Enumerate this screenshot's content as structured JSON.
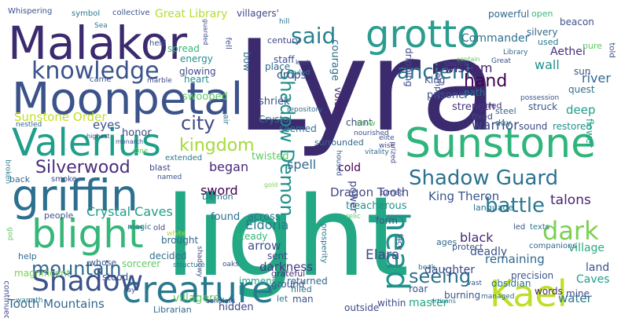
{
  "words": [
    {
      "text": "Lyra",
      "color": "#3b2a6e"
    },
    {
      "text": "light",
      "color": "#22a884"
    },
    {
      "text": "Malakor",
      "color": "#3b2a6e"
    },
    {
      "text": "Moonpetal",
      "color": "#3b528b"
    },
    {
      "text": "Sunstone",
      "color": "#2fb47c"
    },
    {
      "text": "Valerius",
      "color": "#1f9e89"
    },
    {
      "text": "griffin",
      "color": "#2c6f8e"
    },
    {
      "text": "blight",
      "color": "#35b779"
    },
    {
      "text": "grotto",
      "color": "#2a9d8f"
    },
    {
      "text": "creature",
      "color": "#29798e"
    },
    {
      "text": "Kael",
      "color": "#bddf26"
    },
    {
      "text": "knowledge",
      "color": "#3b528b"
    },
    {
      "text": "Shadow Guard",
      "color": "#2c728e"
    },
    {
      "text": "Shadow Demon",
      "color": "#21918c"
    },
    {
      "text": "said",
      "color": "#26828e"
    },
    {
      "text": "ancient",
      "color": "#2c728e"
    },
    {
      "text": "kingdom",
      "color": "#a5db36"
    },
    {
      "text": "city",
      "color": "#3e4a89"
    },
    {
      "text": "hand",
      "color": "#440154"
    },
    {
      "text": "dark",
      "color": "#7ad151"
    },
    {
      "text": "battle",
      "color": "#2a788e"
    },
    {
      "text": "head",
      "color": "#21918c"
    },
    {
      "text": "Shadow",
      "color": "#3b528b"
    },
    {
      "text": "Silverwood",
      "color": "#472d7b"
    },
    {
      "text": "mountain",
      "color": "#31688e"
    },
    {
      "text": "seeing",
      "color": "#2c728e"
    },
    {
      "text": "Sunstone Order",
      "color": "#c2df23"
    },
    {
      "text": "Crystal Caves",
      "color": "#1f9e89"
    },
    {
      "text": "Tooth Mountains",
      "color": "#31688e"
    },
    {
      "text": "Dragon Tooth",
      "color": "#3e4a89"
    },
    {
      "text": "King Theron",
      "color": "#39558c"
    },
    {
      "text": "Great Library",
      "color": "#b5de2b"
    },
    {
      "text": "Commander",
      "color": "#2d708e"
    },
    {
      "text": "Elara",
      "color": "#3e4989"
    },
    {
      "text": "Eldoria",
      "color": "#2a788e"
    },
    {
      "text": "warrior",
      "color": "#3e4989"
    },
    {
      "text": "wisdom",
      "color": "#481f70"
    },
    {
      "text": "arrow",
      "color": "#3b528b"
    },
    {
      "text": "sword",
      "color": "#440154"
    },
    {
      "text": "began",
      "color": "#482878"
    },
    {
      "text": "eyes",
      "color": "#3b528b"
    },
    {
      "text": "darkness",
      "color": "#443983"
    },
    {
      "text": "talons",
      "color": "#482173"
    },
    {
      "text": "river",
      "color": "#31688e"
    },
    {
      "text": "wall",
      "color": "#21918c"
    },
    {
      "text": "deep",
      "color": "#1f9e89"
    },
    {
      "text": "black",
      "color": "#482677"
    },
    {
      "text": "remaining",
      "color": "#31688e"
    },
    {
      "text": "daughter",
      "color": "#3e4989"
    },
    {
      "text": "deadly",
      "color": "#3b528b"
    },
    {
      "text": "village",
      "color": "#28ae80"
    },
    {
      "text": "land",
      "color": "#3b528b"
    },
    {
      "text": "Caves",
      "color": "#1f9e89"
    },
    {
      "text": "water",
      "color": "#2a788e"
    },
    {
      "text": "Aethel",
      "color": "#472d7b"
    },
    {
      "text": "spell",
      "color": "#31688e"
    },
    {
      "text": "cold",
      "color": "#440154"
    },
    {
      "text": "crops",
      "color": "#3e4989"
    },
    {
      "text": "courage",
      "color": "#2d708e"
    },
    {
      "text": "voice",
      "color": "#481f70"
    },
    {
      "text": "chant",
      "color": "#3e4989"
    },
    {
      "text": "strength",
      "color": "#46337e"
    },
    {
      "text": "prisoner",
      "color": "#3b528b"
    },
    {
      "text": "villagers",
      "color": "#5ec962"
    },
    {
      "text": "found",
      "color": "#2c728e"
    },
    {
      "text": "steady",
      "color": "#35b779"
    },
    {
      "text": "brought",
      "color": "#31688e"
    },
    {
      "text": "decided",
      "color": "#2c728e"
    },
    {
      "text": "stood",
      "color": "#3b528b"
    },
    {
      "text": "sorcerer",
      "color": "#5ec962"
    },
    {
      "text": "magnificent",
      "color": "#7ad151"
    },
    {
      "text": "hidden",
      "color": "#3e4989"
    },
    {
      "text": "Librarian",
      "color": "#31688e"
    },
    {
      "text": "let",
      "color": "#2a788e"
    },
    {
      "text": "ground",
      "color": "#3b528b"
    },
    {
      "text": "outside",
      "color": "#3e4989"
    },
    {
      "text": "master",
      "color": "#22a884"
    },
    {
      "text": "returned",
      "color": "#31688e"
    },
    {
      "text": "precision",
      "color": "#39558c"
    },
    {
      "text": "burning",
      "color": "#39558c"
    },
    {
      "text": "obsidian",
      "color": "#2c728e"
    },
    {
      "text": "mine",
      "color": "#3e4989"
    },
    {
      "text": "words",
      "color": "#482878"
    },
    {
      "text": "within",
      "color": "#3e4989"
    },
    {
      "text": "roar",
      "color": "#3b528b"
    },
    {
      "text": "man",
      "color": "#3b528b"
    },
    {
      "text": "filled",
      "color": "#2c728e"
    },
    {
      "text": "sent",
      "color": "#3e4989"
    },
    {
      "text": "immense",
      "color": "#20a486"
    },
    {
      "text": "grateful",
      "color": "#472d7b"
    },
    {
      "text": "across",
      "color": "#2a788e"
    },
    {
      "text": "treacherous",
      "color": "#21918c"
    },
    {
      "text": "power",
      "color": "#3e4989"
    },
    {
      "text": "form",
      "color": "#3b528b"
    },
    {
      "text": "twisted",
      "color": "#5ec962"
    },
    {
      "text": "seemed",
      "color": "#2c728e"
    },
    {
      "text": "surrounded",
      "color": "#31688e"
    },
    {
      "text": "sound",
      "color": "#3e4989"
    },
    {
      "text": "restored",
      "color": "#21918c"
    },
    {
      "text": "flower",
      "color": "#20a486"
    },
    {
      "text": "quest",
      "color": "#2c728e"
    },
    {
      "text": "sun",
      "color": "#3b528b"
    },
    {
      "text": "struck",
      "color": "#3b528b"
    },
    {
      "text": "steel",
      "color": "#31688e"
    },
    {
      "text": "neared",
      "color": "#472d7b"
    },
    {
      "text": "Temple",
      "color": "#3e4989"
    },
    {
      "text": "path",
      "color": "#2c728e"
    },
    {
      "text": "King",
      "color": "#3b528b"
    },
    {
      "text": "fixed",
      "color": "#3e4989"
    },
    {
      "text": "day",
      "color": "#2a788e"
    },
    {
      "text": "heart",
      "color": "#21918c"
    },
    {
      "text": "honor",
      "color": "#3e4989"
    },
    {
      "text": "shriek",
      "color": "#3b528b"
    },
    {
      "text": "Crystal",
      "color": "#2c728e"
    },
    {
      "text": "staff",
      "color": "#3b528b"
    },
    {
      "text": "place",
      "color": "#31688e"
    },
    {
      "text": "swooped",
      "color": "#5ec962"
    },
    {
      "text": "glowing",
      "color": "#3e4989"
    },
    {
      "text": "energy",
      "color": "#21918c"
    },
    {
      "text": "spread",
      "color": "#35b779"
    },
    {
      "text": "bow",
      "color": "#31688e"
    },
    {
      "text": "dripping",
      "color": "#3e4989"
    },
    {
      "text": "century",
      "color": "#3e4989"
    },
    {
      "text": "silvery",
      "color": "#31688e"
    },
    {
      "text": "used",
      "color": "#2a788e"
    },
    {
      "text": "pure",
      "color": "#5ec962"
    },
    {
      "text": "beacon",
      "color": "#3b528b"
    },
    {
      "text": "powerful",
      "color": "#31688e"
    },
    {
      "text": "open",
      "color": "#35b779"
    },
    {
      "text": "villagers'",
      "color": "#3e4989"
    },
    {
      "text": "collective",
      "color": "#3b528b"
    },
    {
      "text": "symbol",
      "color": "#2a788e"
    },
    {
      "text": "Whispering",
      "color": "#3b528b"
    },
    {
      "text": "Sea",
      "color": "#2a788e"
    },
    {
      "text": "fell",
      "color": "#3b528b"
    },
    {
      "text": "hill",
      "color": "#2c728e"
    },
    {
      "text": "held",
      "color": "#3b528b"
    },
    {
      "text": "ruled",
      "color": "#2a788e"
    },
    {
      "text": "kept",
      "color": "#3e4989"
    },
    {
      "text": "repository",
      "color": "#31688e"
    },
    {
      "text": "told",
      "color": "#3b528b"
    },
    {
      "text": "smoke",
      "color": "#3e4989"
    },
    {
      "text": "back",
      "color": "#31688e"
    },
    {
      "text": "blast",
      "color": "#3e4989"
    },
    {
      "text": "extended",
      "color": "#2a788e"
    },
    {
      "text": "named",
      "color": "#3b528b"
    },
    {
      "text": "Demon",
      "color": "#2c728e"
    },
    {
      "text": "gold",
      "color": "#7ad151"
    },
    {
      "text": "nestled",
      "color": "#31688e"
    },
    {
      "text": "highest",
      "color": "#3e4989"
    },
    {
      "text": "monarch",
      "color": "#3b528b"
    },
    {
      "text": "broken",
      "color": "#2a788e"
    },
    {
      "text": "One",
      "color": "#5ec962"
    },
    {
      "text": "came",
      "color": "#3b528b"
    },
    {
      "text": "marble",
      "color": "#3e4989"
    },
    {
      "text": "air",
      "color": "#2c728e"
    },
    {
      "text": "people",
      "color": "#3b528b"
    },
    {
      "text": "magic",
      "color": "#2c728e"
    },
    {
      "text": "old",
      "color": "#3e4989"
    },
    {
      "text": "white",
      "color": "#b5de2b"
    },
    {
      "text": "shadowy",
      "color": "#3e4989"
    },
    {
      "text": "oaks",
      "color": "#3b528b"
    },
    {
      "text": "structure",
      "color": "#2a788e"
    },
    {
      "text": "whose",
      "color": "#3b528b"
    },
    {
      "text": "help",
      "color": "#31688e"
    },
    {
      "text": "continued",
      "color": "#3e4989"
    },
    {
      "text": "warmth",
      "color": "#2a788e"
    },
    {
      "text": "god",
      "color": "#5ec962"
    },
    {
      "text": "scholars",
      "color": "#3e4989"
    },
    {
      "text": "lay",
      "color": "#3b528b"
    },
    {
      "text": "artisans",
      "color": "#2a788e"
    },
    {
      "text": "vast",
      "color": "#3b528b"
    },
    {
      "text": "managed",
      "color": "#31688e"
    },
    {
      "text": "beak",
      "color": "#2c728e"
    },
    {
      "text": "protect",
      "color": "#3b528b"
    },
    {
      "text": "ages",
      "color": "#31688e"
    },
    {
      "text": "face",
      "color": "#3e4989"
    },
    {
      "text": "relic",
      "color": "#5ec962"
    },
    {
      "text": "housed",
      "color": "#3b528b"
    },
    {
      "text": "prosperity",
      "color": "#2a788e"
    },
    {
      "text": "prized",
      "color": "#3e4989"
    },
    {
      "text": "vitality",
      "color": "#31688e"
    },
    {
      "text": "elite",
      "color": "#3b528b"
    },
    {
      "text": "wise",
      "color": "#3e4989"
    },
    {
      "text": "show",
      "color": "#5ec962"
    },
    {
      "text": "nourished",
      "color": "#3b528b"
    },
    {
      "text": "turned",
      "color": "#3e4989"
    },
    {
      "text": "language",
      "color": "#2c728e"
    },
    {
      "text": "led",
      "color": "#3b528b"
    },
    {
      "text": "texts",
      "color": "#2c728e"
    },
    {
      "text": "companions",
      "color": "#31688e"
    },
    {
      "text": "possession",
      "color": "#3b528b"
    },
    {
      "text": "source",
      "color": "#3e4989"
    },
    {
      "text": "contain",
      "color": "#5ec962"
    },
    {
      "text": "Great",
      "color": "#3b528b"
    },
    {
      "text": "Library",
      "color": "#31688e"
    },
    {
      "text": "guarded",
      "color": "#3e4989"
    }
  ]
}
